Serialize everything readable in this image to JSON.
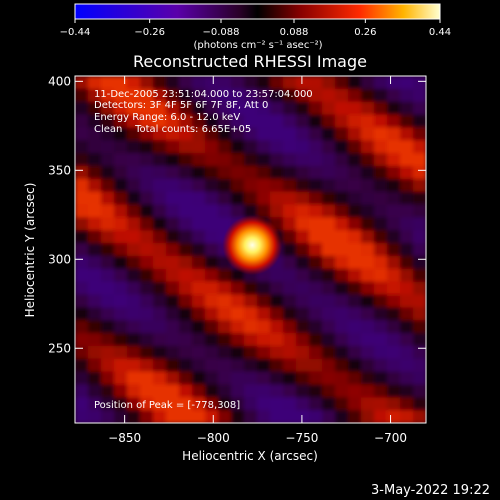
{
  "chart_data": {
    "type": "heatmap",
    "title": "Reconstructed RHESSI Image",
    "xlabel": "Heliocentric X (arcsec)",
    "ylabel": "Heliocentric Y (arcsec)",
    "xlim": [
      -878,
      -680
    ],
    "ylim": [
      208,
      403
    ],
    "x_ticks": [
      -850,
      -800,
      -750,
      -700
    ],
    "y_ticks": [
      250,
      300,
      350,
      400
    ],
    "x_tick_labels": [
      "−850",
      "−800",
      "−750",
      "−700"
    ],
    "y_tick_labels": [
      "250",
      "300",
      "350",
      "400"
    ],
    "colorbar": {
      "range": [
        -0.44,
        0.44
      ],
      "tick_values": [
        -0.44,
        -0.26,
        -0.088,
        0.088,
        0.26,
        0.44
      ],
      "tick_labels": [
        "−0.44",
        "−0.26",
        "−0.088",
        "0.088",
        "0.26",
        "0.44"
      ],
      "unit_label": "(photons cm⁻² s⁻¹ asec⁻²)"
    },
    "peak": {
      "x": -778,
      "y": 308,
      "value": 0.44
    },
    "annotations": {
      "time": "11-Dec-2005 23:51:04.000 to 23:57:04.000",
      "detectors": "Detectors: 3F 4F 5F 6F 7F 8F, Att 0",
      "energy": "Energy Range: 6.0 - 12.0 keV",
      "clean": "Clean    Total counts: 6.65E+05",
      "peak": "Position of Peak = [-778,308]"
    }
  },
  "footer": {
    "timestamp": "3-May-2022 19:22"
  }
}
